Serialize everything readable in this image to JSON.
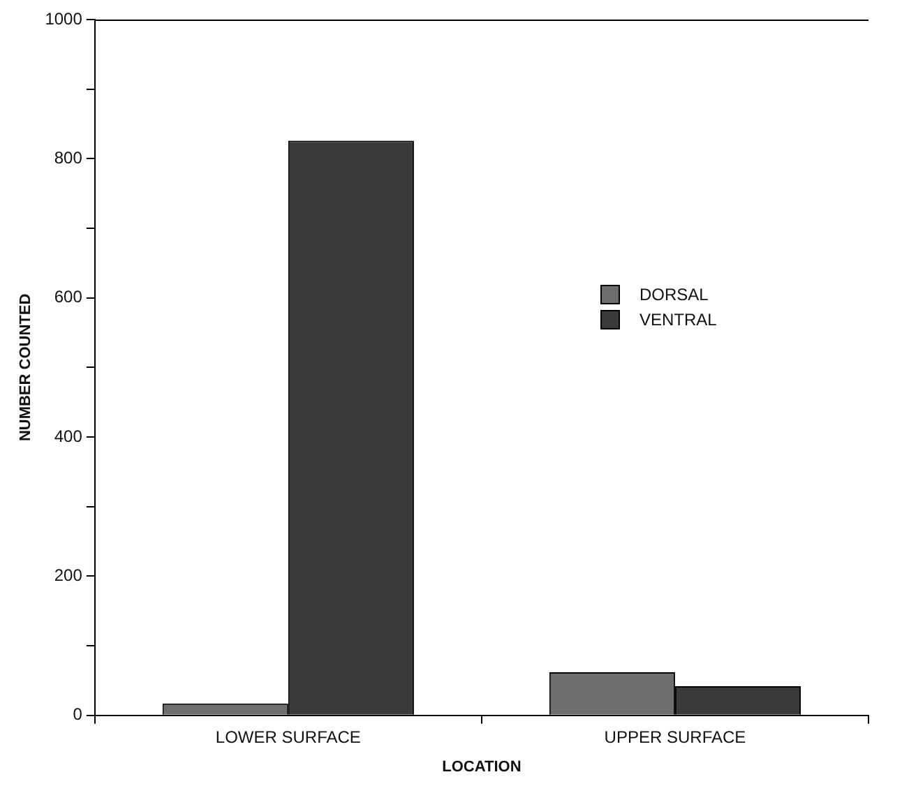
{
  "chart_data": {
    "type": "bar",
    "xlabel": "LOCATION",
    "ylabel": "NUMBER COUNTED",
    "categories": [
      "LOWER SURFACE",
      "UPPER SURFACE"
    ],
    "series": [
      {
        "name": "DORSAL",
        "color": "#6e6e6e",
        "values": [
          17,
          62
        ]
      },
      {
        "name": "VENTRAL",
        "color": "#3a3a3a",
        "values": [
          826,
          42
        ]
      }
    ],
    "ylim": [
      0,
      1000
    ],
    "yticks": [
      0,
      {
        "value": 100,
        "label": null
      },
      200,
      {
        "value": 300,
        "label": null
      },
      400,
      {
        "value": 500,
        "label": null
      },
      600,
      {
        "value": 700,
        "label": null
      },
      800,
      {
        "value": 900,
        "label": null
      },
      1000
    ],
    "grid": false,
    "legend": "right"
  }
}
